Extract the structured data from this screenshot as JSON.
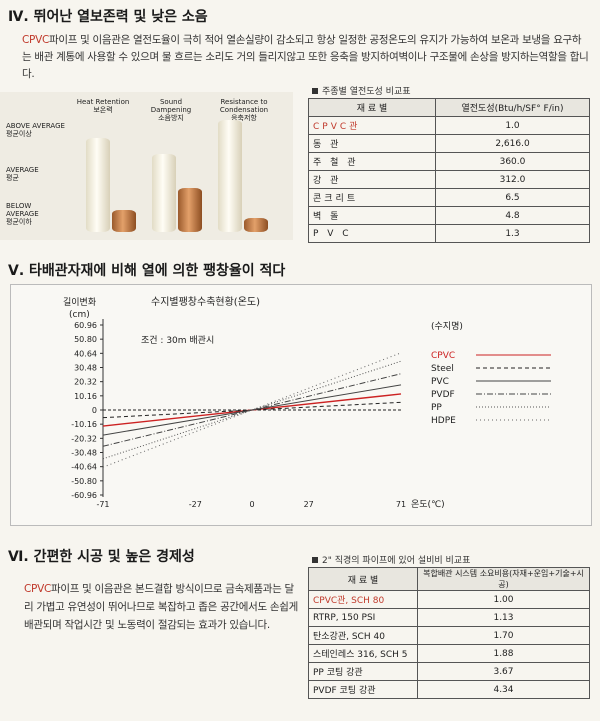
{
  "sec4": {
    "title": "Ⅳ. 뛰어난 열보존력 및 낮은 소음",
    "para_red": "CPVC",
    "para_text": "파이프 및 이음관은 열전도율이 극히 적어 열손실량이 감소되고 항상 일정한 공정온도의 유지가 가능하여 보온과 보냉을 요구하는 배관 계통에 사용할 수 있으며 물 흐르는 소리도 거의 들리지않고 또한 응축을 방지하여벽이나 구조물에 손상을 방지하는역할을 합니다."
  },
  "bar_fig": {
    "headers": [
      {
        "en": "Heat Retention",
        "ko": "보온력"
      },
      {
        "en": "Sound Dampening",
        "ko": "소음방지"
      },
      {
        "en": "Resistance to Condensation",
        "ko": "응축저항"
      }
    ],
    "levels": [
      {
        "en": "ABOVE AVERAGE",
        "ko": "평균이상"
      },
      {
        "en": "AVERAGE",
        "ko": "평균"
      },
      {
        "en": "BELOW AVERAGE",
        "ko": "평균이하"
      }
    ]
  },
  "thermal_table": {
    "caption": "주종별 열전도성 비교표",
    "headers": [
      "재 료 별",
      "열전도성(Btu/h/SF° F/in)"
    ],
    "rows": [
      {
        "material": "CPVC관",
        "value": "1.0",
        "highlight": true
      },
      {
        "material": "동 관",
        "value": "2,616.0"
      },
      {
        "material": "주 철 관",
        "value": "360.0"
      },
      {
        "material": "강 관",
        "value": "312.0"
      },
      {
        "material": "콘크리트",
        "value": "6.5"
      },
      {
        "material": "벽 돌",
        "value": "4.8"
      },
      {
        "material": "P V C",
        "value": "1.3"
      }
    ]
  },
  "sec5": {
    "title": "Ⅴ. 타배관자재에 비해 열에 의한 팽창율이 적다"
  },
  "chart_data": {
    "type": "line",
    "title": "수지별팽창수축현황(온도)",
    "condition": "조건 : 30m 배관시",
    "ylabel": "길이변화 (cm)",
    "xlabel": "온도(℃)",
    "ylim": [
      -60.96,
      60.96
    ],
    "xlim": [
      -71,
      71
    ],
    "yticks": [
      "60.96",
      "50.80",
      "40.64",
      "30.48",
      "20.32",
      "10.16",
      "0",
      "-10.16",
      "-20.32",
      "-30.48",
      "-40.64",
      "-50.80",
      "-60.96"
    ],
    "xticks": [
      "-71",
      "-27",
      "0",
      "27",
      "71"
    ],
    "legend_title": "(수지명)",
    "series": [
      {
        "name": "CPVC",
        "color": "#cc2222",
        "dash": "",
        "x": [
          -71,
          71
        ],
        "y": [
          -11.5,
          11.5
        ]
      },
      {
        "name": "Steel",
        "color": "#222222",
        "dash": "4,3",
        "x": [
          -71,
          71
        ],
        "y": [
          -5.5,
          5.5
        ]
      },
      {
        "name": "PVC",
        "color": "#444444",
        "dash": "",
        "x": [
          -71,
          71
        ],
        "y": [
          -18,
          18
        ]
      },
      {
        "name": "PVDF",
        "color": "#444444",
        "dash": "6,2,1,2",
        "x": [
          -71,
          71
        ],
        "y": [
          -26,
          26
        ]
      },
      {
        "name": "PP",
        "color": "#555555",
        "dash": "1,2",
        "x": [
          -71,
          71
        ],
        "y": [
          -35,
          35
        ]
      },
      {
        "name": "HDPE",
        "color": "#666666",
        "dash": "1,3",
        "x": [
          -71,
          71
        ],
        "y": [
          -41,
          41
        ]
      }
    ]
  },
  "sec6": {
    "title": "Ⅵ. 간편한 시공 및 높은 경제성",
    "para_red": "CPVC",
    "para_text": "파이프 및 이음관은 본드결합 방식이므로 금속제품과는 달리 가볍고 유연성이 뛰어나므로 복잡하고 좁은 공간에서도 손쉽게 배관되며 작업시간 및 노동력이 절감되는 효과가 있습니다."
  },
  "cost_table": {
    "caption": "2\" 직경의 파이프에 있어 설비비 비교표",
    "headers": [
      "재 료 별",
      "복합배관 시스템 소요비용(자재+운임+기술+시공)"
    ],
    "rows": [
      {
        "material": "CPVC관, SCH 80",
        "value": "1.00",
        "highlight": true
      },
      {
        "material": "RTRP, 150 PSI",
        "value": "1.13"
      },
      {
        "material": "탄소강관, SCH 40",
        "value": "1.70"
      },
      {
        "material": "스테인레스 316, SCH 5",
        "value": "1.88"
      },
      {
        "material": "PP 코팅 강관",
        "value": "3.67"
      },
      {
        "material": "PVDF 코팅 강관",
        "value": "4.34"
      }
    ]
  }
}
